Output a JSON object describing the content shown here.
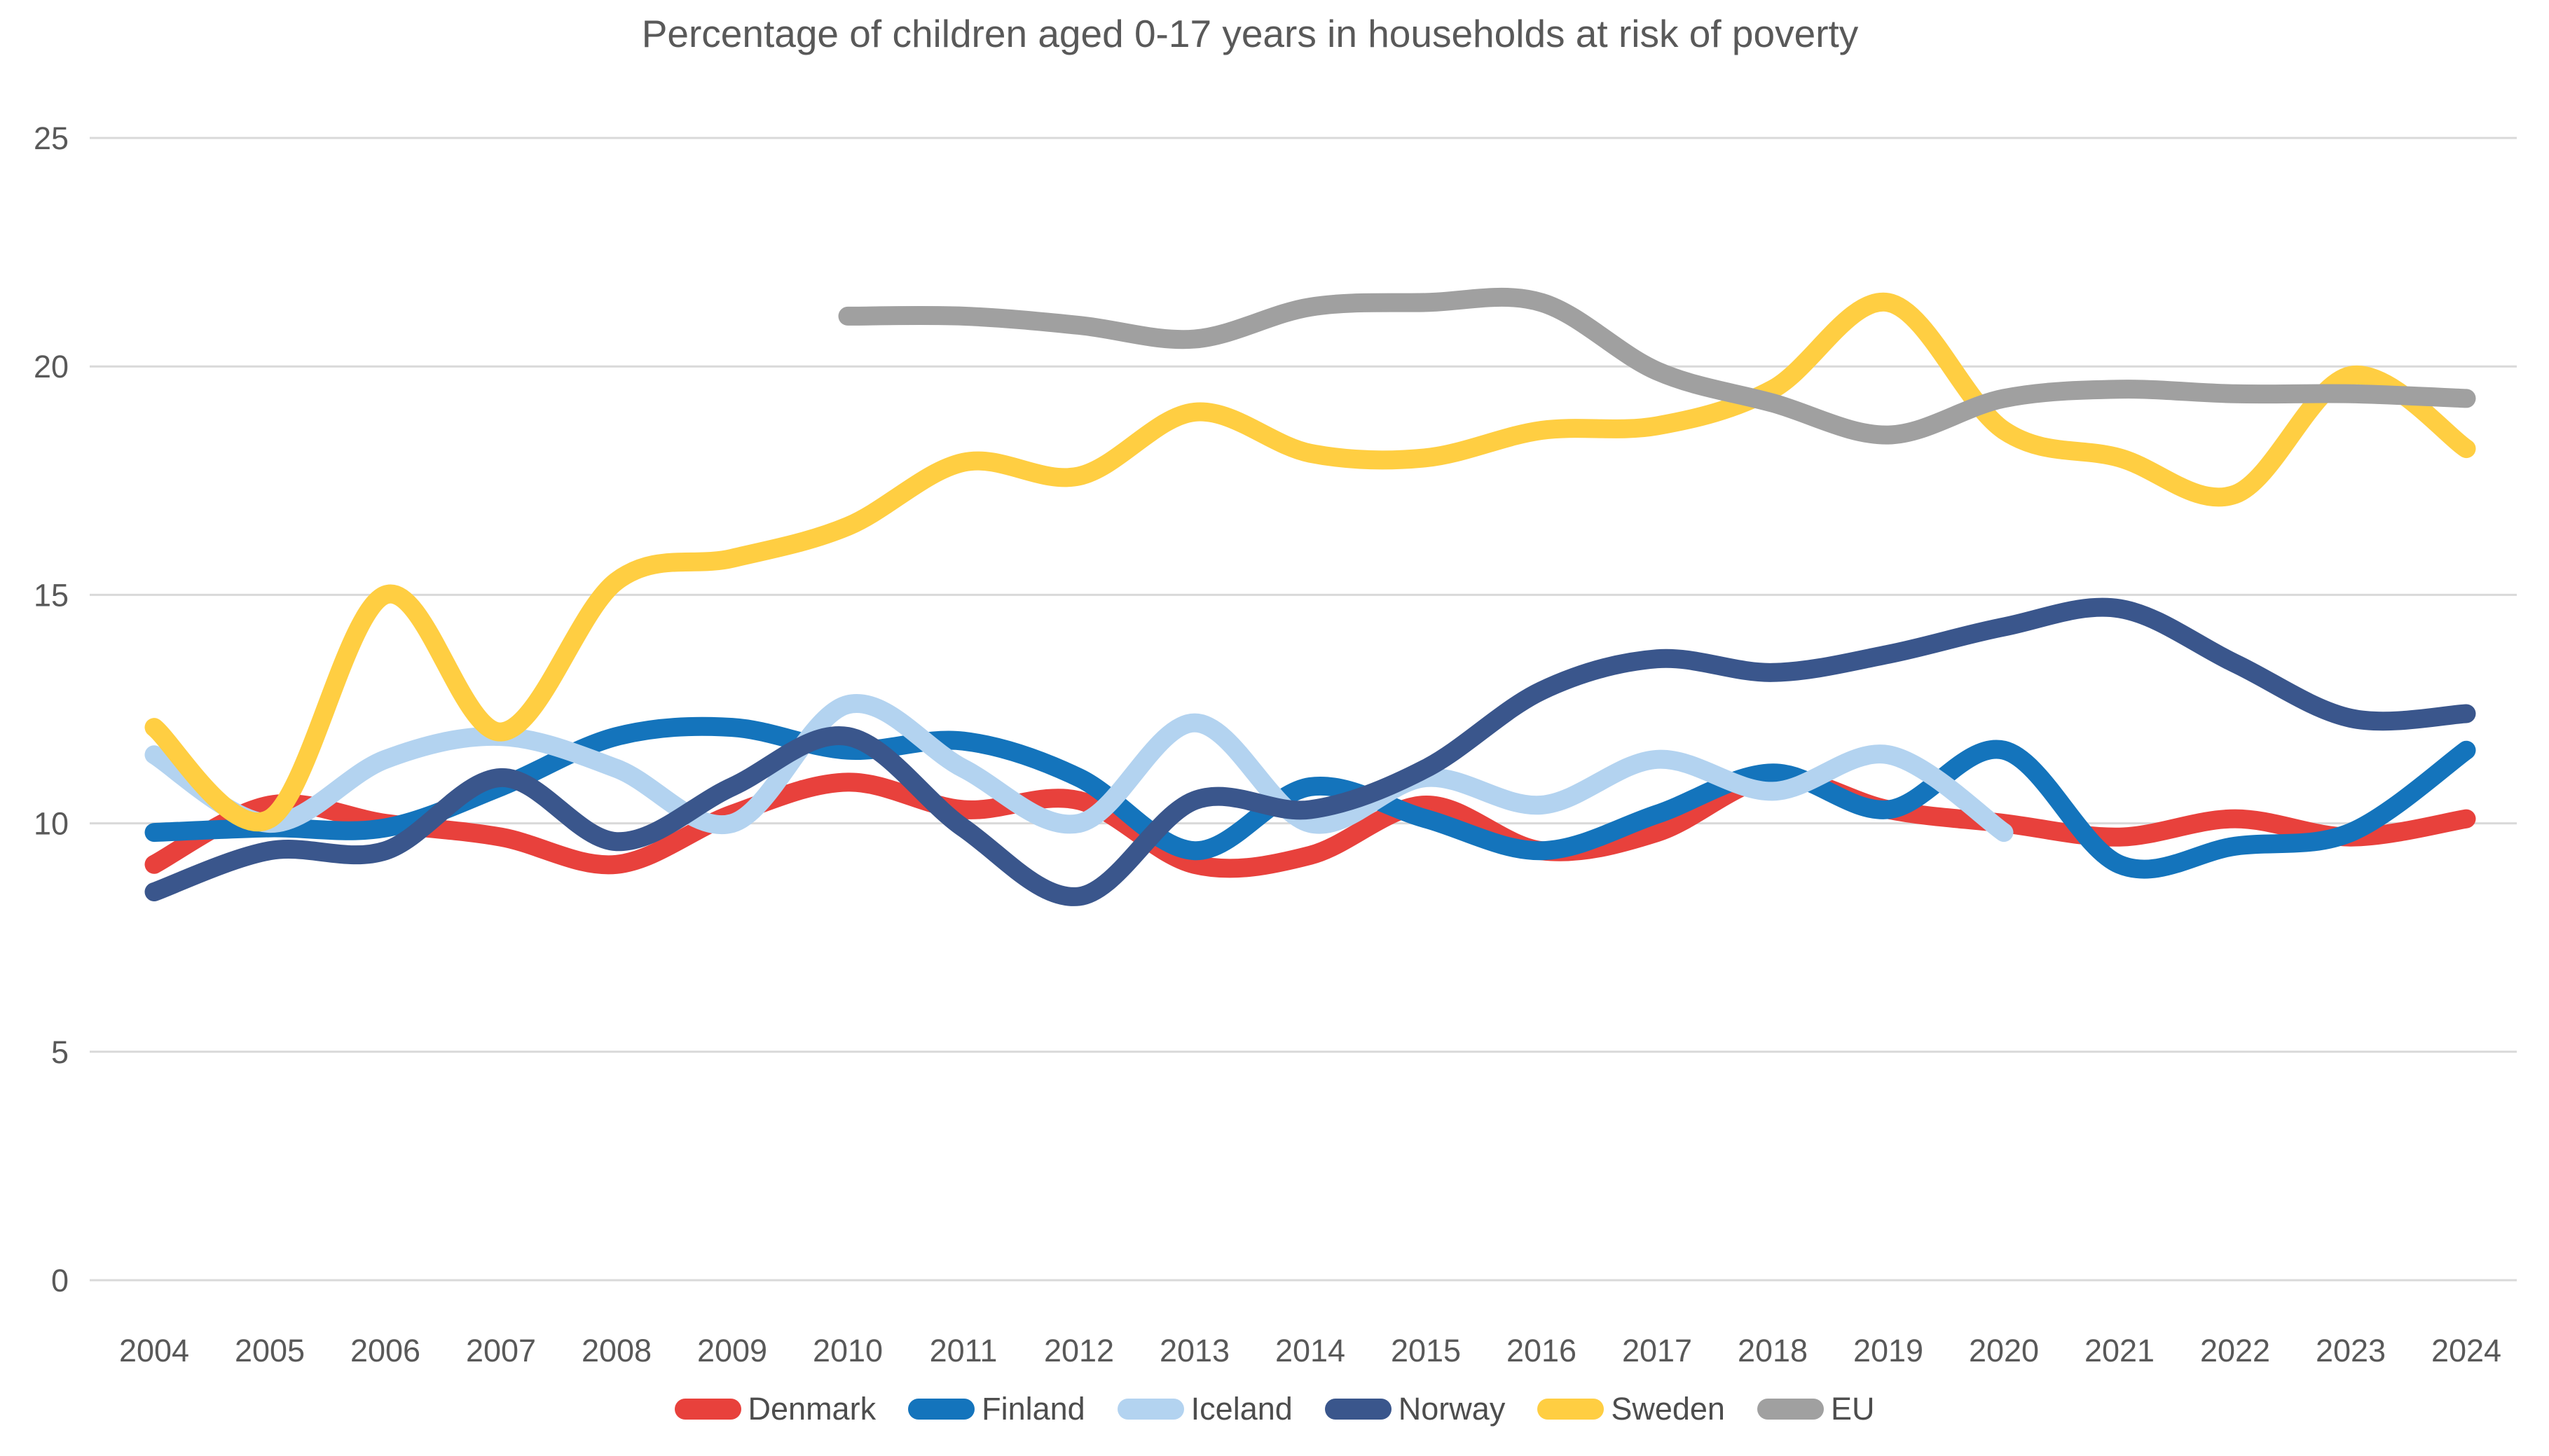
{
  "chart_data": {
    "type": "line",
    "title": "Percentage of children aged 0-17 years in households at risk of poverty",
    "x": [
      2004,
      2005,
      2006,
      2007,
      2008,
      2009,
      2010,
      2011,
      2012,
      2013,
      2014,
      2015,
      2016,
      2017,
      2018,
      2019,
      2020,
      2021,
      2022,
      2023,
      2024
    ],
    "xlabel": "",
    "ylabel": "",
    "ylim": [
      0,
      25
    ],
    "yticks": [
      0,
      5,
      10,
      15,
      20,
      25
    ],
    "grid": true,
    "legend_position": "bottom",
    "line_style": "smooth",
    "series": [
      {
        "name": "Denmark",
        "color": "#E8413C",
        "values": [
          9.1,
          10.4,
          10.0,
          9.7,
          9.1,
          10.2,
          10.9,
          10.3,
          10.5,
          9.1,
          9.3,
          10.4,
          9.4,
          9.8,
          11.0,
          10.3,
          10.0,
          9.7,
          10.1,
          9.7,
          10.1
        ]
      },
      {
        "name": "Finland",
        "color": "#1474BC",
        "values": [
          9.8,
          9.9,
          9.9,
          10.8,
          11.9,
          12.1,
          11.6,
          11.8,
          11.0,
          9.4,
          10.8,
          10.1,
          9.4,
          10.2,
          11.1,
          10.3,
          11.6,
          9.1,
          9.5,
          9.8,
          11.6
        ]
      },
      {
        "name": "Iceland",
        "color": "#B3D3F0",
        "values": [
          11.5,
          10.0,
          11.4,
          11.9,
          11.2,
          10.0,
          12.6,
          11.2,
          10.0,
          12.2,
          10.0,
          11.0,
          10.4,
          11.4,
          10.7,
          11.5,
          9.8,
          null,
          null,
          null,
          null
        ]
      },
      {
        "name": "Norway",
        "color": "#3A568C",
        "values": [
          8.5,
          9.4,
          9.4,
          11.0,
          9.6,
          10.8,
          11.9,
          9.9,
          8.4,
          10.5,
          10.3,
          11.2,
          12.9,
          13.6,
          13.3,
          13.7,
          14.3,
          14.7,
          13.5,
          12.3,
          12.4
        ]
      },
      {
        "name": "Sweden",
        "color": "#FFCE42",
        "values": [
          12.1,
          10.1,
          15.0,
          12.0,
          15.3,
          15.8,
          16.5,
          17.9,
          17.6,
          19.0,
          18.1,
          18.0,
          18.6,
          18.7,
          19.5,
          21.4,
          18.6,
          18.0,
          17.2,
          19.8,
          18.2
        ]
      },
      {
        "name": "EU",
        "color": "#A0A0A0",
        "values": [
          null,
          null,
          null,
          null,
          null,
          null,
          21.1,
          21.1,
          20.9,
          20.6,
          21.3,
          21.4,
          21.4,
          19.9,
          19.2,
          18.5,
          19.3,
          19.5,
          19.4,
          19.4,
          19.3
        ]
      }
    ]
  },
  "style": {
    "grid_color": "#D9D9D9",
    "text_color": "#595959",
    "background": "#FFFFFF"
  }
}
